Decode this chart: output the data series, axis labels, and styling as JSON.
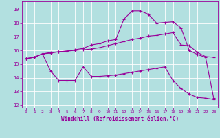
{
  "xlabel": "Windchill (Refroidissement éolien,°C)",
  "background_color": "#b2e0e0",
  "grid_color": "#ffffff",
  "line_color": "#990099",
  "xlim": [
    -0.5,
    23.5
  ],
  "ylim": [
    11.8,
    19.6
  ],
  "xticks": [
    0,
    1,
    2,
    3,
    4,
    5,
    6,
    7,
    8,
    9,
    10,
    11,
    12,
    13,
    14,
    15,
    16,
    17,
    18,
    19,
    20,
    21,
    22,
    23
  ],
  "yticks": [
    12,
    13,
    14,
    15,
    16,
    17,
    18,
    19
  ],
  "line1_x": [
    0,
    1,
    2,
    3,
    4,
    5,
    6,
    7,
    8,
    9,
    10,
    11,
    12,
    13,
    14,
    15,
    16,
    17,
    18,
    19,
    20,
    21,
    22,
    23
  ],
  "line1_y": [
    15.4,
    15.5,
    15.75,
    15.8,
    15.9,
    15.95,
    16.0,
    16.05,
    16.1,
    16.2,
    16.35,
    16.5,
    16.65,
    16.8,
    16.9,
    17.05,
    17.1,
    17.2,
    17.3,
    16.4,
    16.35,
    15.85,
    15.55,
    15.5
  ],
  "line2_x": [
    0,
    1,
    2,
    3,
    4,
    5,
    6,
    7,
    8,
    9,
    10,
    11,
    12,
    13,
    14,
    15,
    16,
    17,
    18,
    19,
    20,
    21,
    22,
    23
  ],
  "line2_y": [
    15.4,
    15.5,
    15.75,
    15.85,
    15.9,
    15.95,
    16.05,
    16.15,
    16.4,
    16.5,
    16.7,
    16.8,
    18.3,
    18.9,
    18.9,
    18.65,
    18.0,
    18.05,
    18.1,
    17.65,
    16.0,
    15.7,
    15.5,
    12.5
  ],
  "line3_x": [
    0,
    1,
    2,
    3,
    4,
    5,
    6,
    7,
    8,
    9,
    10,
    11,
    12,
    13,
    14,
    15,
    16,
    17,
    18,
    19,
    20,
    21,
    22,
    23
  ],
  "line3_y": [
    15.4,
    15.5,
    15.75,
    14.5,
    13.8,
    13.8,
    13.8,
    14.8,
    14.1,
    14.1,
    14.15,
    14.2,
    14.3,
    14.4,
    14.5,
    14.6,
    14.7,
    14.8,
    13.8,
    13.2,
    12.8,
    12.55,
    12.5,
    12.4
  ]
}
